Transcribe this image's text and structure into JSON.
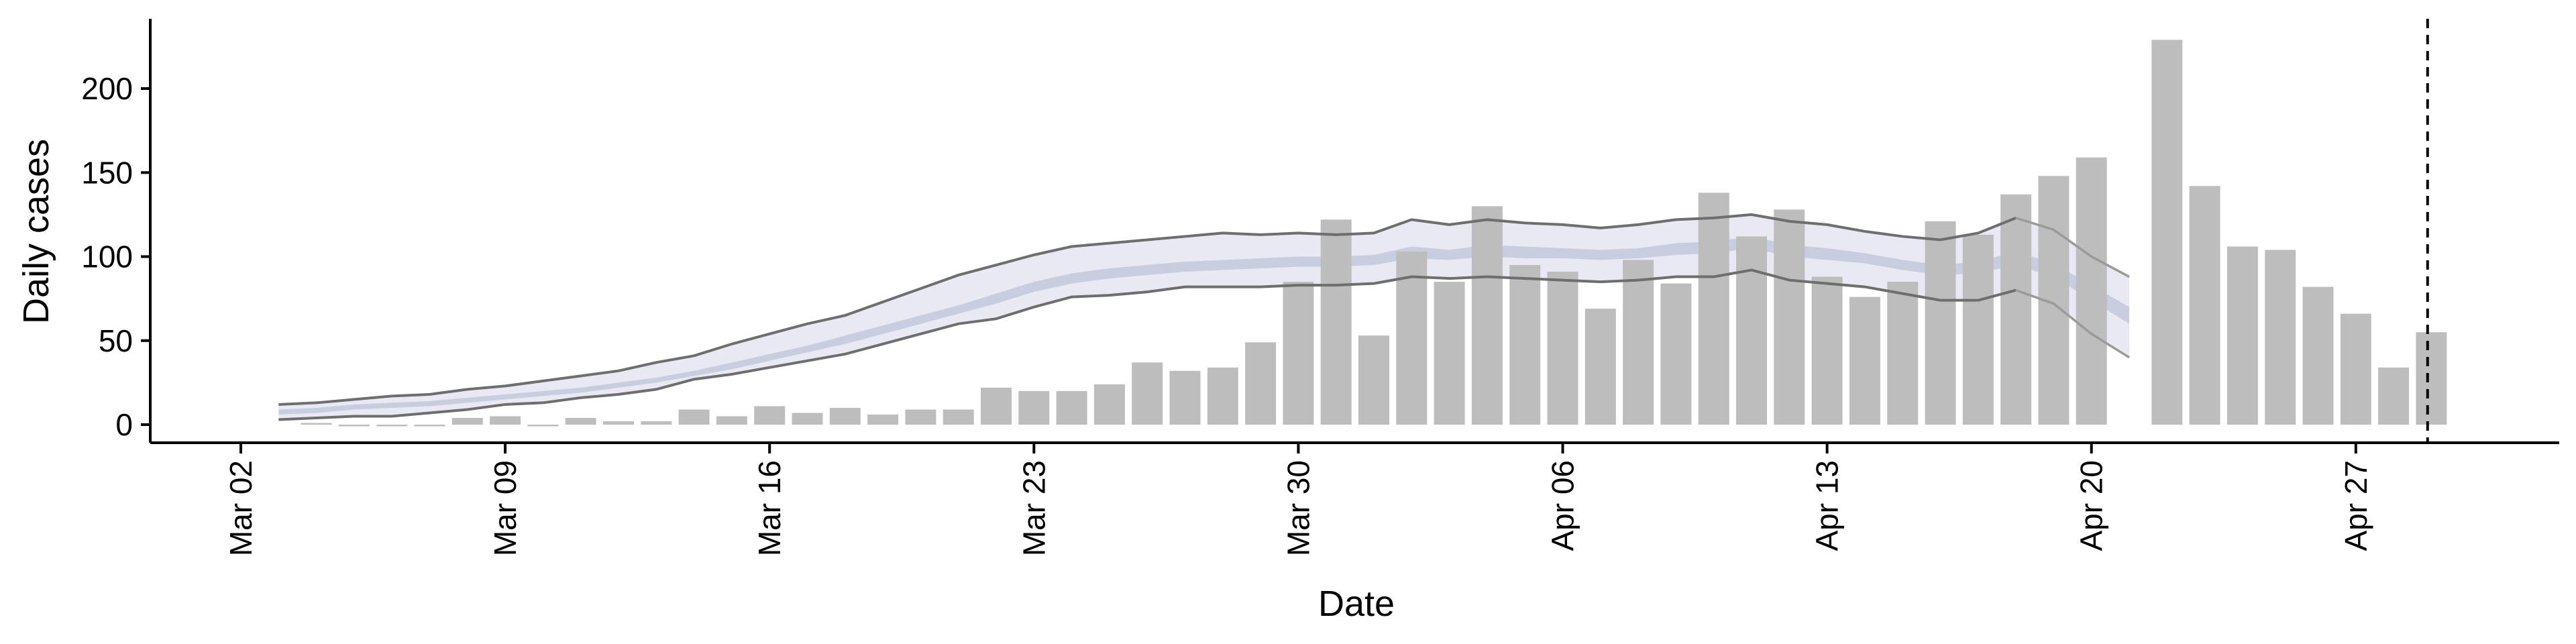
{
  "chart_data": {
    "type": "bar",
    "title": "",
    "xlabel": "Date",
    "ylabel": "Daily cases",
    "ylim": [
      -10,
      240
    ],
    "yticks": [
      0,
      50,
      100,
      150,
      200
    ],
    "xticks": [
      {
        "day": 1,
        "label": "Mar 02"
      },
      {
        "day": 8,
        "label": "Mar 09"
      },
      {
        "day": 15,
        "label": "Mar 16"
      },
      {
        "day": 22,
        "label": "Mar 23"
      },
      {
        "day": 29,
        "label": "Mar 30"
      },
      {
        "day": 36,
        "label": "Apr 06"
      },
      {
        "day": 43,
        "label": "Apr 13"
      },
      {
        "day": 50,
        "label": "Apr 20"
      },
      {
        "day": 57,
        "label": "Apr 27"
      }
    ],
    "bars": {
      "color": "#bdbdbd",
      "values": [
        [
          3,
          1
        ],
        [
          4,
          0
        ],
        [
          5,
          0
        ],
        [
          6,
          0
        ],
        [
          7,
          4
        ],
        [
          8,
          5
        ],
        [
          9,
          0
        ],
        [
          10,
          4
        ],
        [
          11,
          2
        ],
        [
          12,
          2
        ],
        [
          13,
          9
        ],
        [
          14,
          5
        ],
        [
          15,
          11
        ],
        [
          16,
          7
        ],
        [
          17,
          10
        ],
        [
          18,
          6
        ],
        [
          19,
          9
        ],
        [
          20,
          9
        ],
        [
          21,
          22
        ],
        [
          22,
          20
        ],
        [
          23,
          20
        ],
        [
          24,
          24
        ],
        [
          25,
          37
        ],
        [
          26,
          32
        ],
        [
          27,
          34
        ],
        [
          28,
          49
        ],
        [
          29,
          85
        ],
        [
          30,
          122
        ],
        [
          31,
          53
        ],
        [
          32,
          103
        ],
        [
          33,
          85
        ],
        [
          34,
          130
        ],
        [
          35,
          95
        ],
        [
          36,
          91
        ],
        [
          37,
          69
        ],
        [
          38,
          98
        ],
        [
          39,
          84
        ],
        [
          40,
          138
        ],
        [
          41,
          112
        ],
        [
          42,
          128
        ],
        [
          43,
          88
        ],
        [
          44,
          76
        ],
        [
          45,
          85
        ],
        [
          46,
          121
        ],
        [
          47,
          113
        ],
        [
          48,
          137
        ],
        [
          49,
          148
        ],
        [
          50,
          159
        ],
        [
          52,
          229
        ],
        [
          53,
          142
        ],
        [
          54,
          106
        ],
        [
          55,
          104
        ],
        [
          56,
          82
        ],
        [
          57,
          66
        ],
        [
          58,
          34
        ],
        [
          59,
          55
        ]
      ]
    },
    "band_90": {
      "color": "#e8e9f2",
      "x": [
        2,
        3,
        4,
        5,
        6,
        7,
        8,
        9,
        10,
        11,
        12,
        13,
        14,
        15,
        16,
        17,
        18,
        19,
        20,
        21,
        22,
        23,
        24,
        25,
        26,
        27,
        28,
        29,
        30,
        31,
        32,
        33,
        34,
        35,
        36,
        37,
        38,
        39,
        40,
        41,
        42,
        43,
        44,
        45,
        46,
        47,
        48,
        49,
        50,
        51
      ],
      "lower": [
        3,
        4,
        5,
        5,
        7,
        9,
        12,
        13,
        16,
        18,
        21,
        27,
        30,
        34,
        38,
        42,
        48,
        54,
        60,
        63,
        70,
        76,
        77,
        79,
        82,
        82,
        82,
        83,
        83,
        84,
        88,
        87,
        88,
        87,
        86,
        85,
        86,
        88,
        88,
        92,
        86,
        84,
        82,
        78,
        74,
        74,
        80,
        72,
        54,
        40
      ],
      "upper": [
        12,
        13,
        15,
        17,
        18,
        21,
        23,
        26,
        29,
        32,
        37,
        41,
        48,
        54,
        60,
        65,
        73,
        81,
        89,
        95,
        101,
        106,
        108,
        110,
        112,
        114,
        113,
        114,
        113,
        114,
        122,
        119,
        122,
        120,
        119,
        117,
        119,
        122,
        123,
        125,
        121,
        119,
        115,
        112,
        110,
        114,
        123,
        116,
        100,
        88
      ]
    },
    "band_50": {
      "color": "#c8cde0",
      "x": [
        2,
        3,
        4,
        5,
        6,
        7,
        8,
        9,
        10,
        11,
        12,
        13,
        14,
        15,
        16,
        17,
        18,
        19,
        20,
        21,
        22,
        23,
        24,
        25,
        26,
        27,
        28,
        29,
        30,
        31,
        32,
        33,
        34,
        35,
        36,
        37,
        38,
        39,
        40,
        41,
        42,
        43,
        44,
        45,
        46,
        47,
        48,
        49,
        50,
        51
      ],
      "lower": [
        6,
        7,
        9,
        10,
        11,
        13,
        15,
        17,
        19,
        22,
        25,
        29,
        33,
        38,
        43,
        48,
        54,
        60,
        66,
        72,
        79,
        84,
        87,
        89,
        91,
        92,
        93,
        94,
        94,
        95,
        99,
        98,
        100,
        99,
        99,
        98,
        99,
        101,
        102,
        105,
        100,
        98,
        96,
        92,
        89,
        90,
        95,
        88,
        74,
        60
      ],
      "upper": [
        9,
        10,
        12,
        13,
        14,
        16,
        18,
        20,
        22,
        25,
        28,
        32,
        37,
        42,
        47,
        53,
        59,
        65,
        71,
        78,
        85,
        90,
        93,
        95,
        97,
        98,
        99,
        100,
        100,
        101,
        106,
        104,
        107,
        106,
        105,
        104,
        105,
        108,
        109,
        112,
        107,
        105,
        102,
        98,
        95,
        97,
        103,
        96,
        83,
        70
      ]
    },
    "median_line": {
      "color": "#c5cade"
    },
    "nowcast_from": 48,
    "dashed_line_at": 58.9,
    "line_color": "#6e6e6e"
  }
}
